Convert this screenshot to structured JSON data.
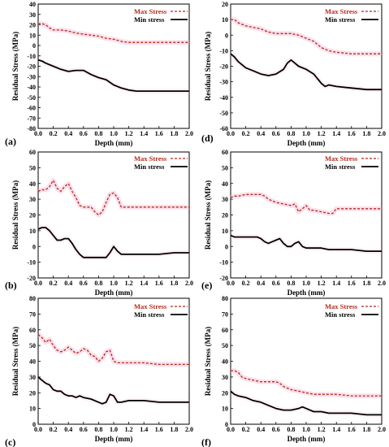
{
  "colors": {
    "max": "#b5291d",
    "min": "#000000",
    "band": "#f4a6c8"
  },
  "chart_data": [
    {
      "panel": "(a)",
      "type": "line",
      "xlabel": "Depth (mm)",
      "ylabel": "Residual Stress (MPa)",
      "xlim": [
        0,
        2.0
      ],
      "ylim": [
        -80,
        40
      ],
      "xticks": [
        "0.0",
        "0.2",
        "0.4",
        "0.6",
        "0.8",
        "1.0",
        "1.2",
        "1.4",
        "1.6",
        "1.8",
        "2.0"
      ],
      "yticks": [
        "-80",
        "-70",
        "-60",
        "-50",
        "-40",
        "-30",
        "-20",
        "-10",
        "0",
        "10",
        "20",
        "30",
        "40"
      ],
      "legend": {
        "position": "top-right",
        "max_label": "Max Stress",
        "min_label": "Min stress"
      },
      "series": [
        {
          "name": "Max Stress",
          "style": "dashed",
          "x": [
            0,
            0.05,
            0.1,
            0.15,
            0.2,
            0.3,
            0.4,
            0.5,
            0.6,
            0.7,
            0.8,
            0.9,
            1.0,
            1.1,
            1.2,
            1.4,
            1.6,
            1.8,
            2.0
          ],
          "y": [
            21,
            21,
            20,
            17,
            15,
            15,
            14,
            12,
            11,
            10,
            9,
            7,
            6,
            4,
            3,
            3,
            3,
            3,
            3
          ]
        },
        {
          "name": "Min stress",
          "style": "solid",
          "x": [
            0,
            0.05,
            0.1,
            0.2,
            0.3,
            0.4,
            0.5,
            0.6,
            0.7,
            0.8,
            0.9,
            1.0,
            1.1,
            1.2,
            1.3,
            1.4,
            1.6,
            1.8,
            2.0
          ],
          "y": [
            -14,
            -15,
            -17,
            -20,
            -23,
            -25,
            -24,
            -24,
            -28,
            -31,
            -33,
            -38,
            -41,
            -43,
            -44,
            -44,
            -44,
            -44,
            -44
          ]
        }
      ]
    },
    {
      "panel": "(d)",
      "type": "line",
      "xlabel": "Depth (mm)",
      "ylabel": "Residual Stress (MPa)",
      "xlim": [
        0,
        2.0
      ],
      "ylim": [
        -60,
        20
      ],
      "xticks": [
        "0.0",
        "0.2",
        "0.4",
        "0.6",
        "0.8",
        "1.0",
        "1.2",
        "1.4",
        "1.6",
        "1.8",
        "2.0"
      ],
      "yticks": [
        "-60",
        "-50",
        "-40",
        "-30",
        "-20",
        "-10",
        "0",
        "10",
        "20"
      ],
      "legend": {
        "position": "top-right",
        "max_label": "Max Stress",
        "min_label": "Min stress"
      },
      "series": [
        {
          "name": "Max Stress",
          "style": "dashed",
          "x": [
            0,
            0.05,
            0.1,
            0.2,
            0.3,
            0.4,
            0.5,
            0.6,
            0.7,
            0.8,
            0.9,
            1.0,
            1.1,
            1.2,
            1.3,
            1.4,
            1.6,
            1.8,
            2.0
          ],
          "y": [
            10,
            10,
            8,
            6,
            5,
            4,
            2,
            1,
            1,
            1,
            0,
            -2,
            -4,
            -8,
            -10,
            -11,
            -12,
            -12,
            -12
          ]
        },
        {
          "name": "Min stress",
          "style": "solid",
          "x": [
            0,
            0.05,
            0.1,
            0.2,
            0.3,
            0.4,
            0.5,
            0.6,
            0.7,
            0.75,
            0.8,
            0.85,
            0.9,
            1.0,
            1.1,
            1.2,
            1.25,
            1.3,
            1.4,
            1.6,
            1.8,
            2.0
          ],
          "y": [
            -12,
            -14,
            -17,
            -21,
            -23,
            -25,
            -26,
            -25,
            -22,
            -18,
            -16,
            -18,
            -20,
            -22,
            -25,
            -31,
            -33,
            -32,
            -33,
            -34,
            -35,
            -35
          ]
        }
      ]
    },
    {
      "panel": "(b)",
      "type": "line",
      "xlabel": "Depth (mm)",
      "ylabel": "Residual Stress (MPa)",
      "xlim": [
        0,
        2.0
      ],
      "ylim": [
        -20,
        60
      ],
      "xticks": [
        "0.0",
        "0.2",
        "0.4",
        "0.6",
        "0.8",
        "1.0",
        "1.2",
        "1.4",
        "1.6",
        "1.8",
        "2.0"
      ],
      "yticks": [
        "-20",
        "-10",
        "0",
        "10",
        "20",
        "30",
        "40",
        "50",
        "60"
      ],
      "legend": {
        "position": "top-right",
        "max_label": "Max Stress",
        "min_label": "Min stress"
      },
      "series": [
        {
          "name": "Max Stress",
          "style": "dashed",
          "x": [
            0,
            0.05,
            0.1,
            0.15,
            0.2,
            0.25,
            0.3,
            0.35,
            0.4,
            0.45,
            0.5,
            0.55,
            0.6,
            0.7,
            0.75,
            0.8,
            0.85,
            0.9,
            0.95,
            1.0,
            1.05,
            1.1,
            1.2,
            1.4,
            1.6,
            1.8,
            2.0
          ],
          "y": [
            35,
            36,
            36,
            38,
            42,
            37,
            35,
            38,
            40,
            35,
            31,
            26,
            25,
            25,
            22,
            20,
            22,
            28,
            33,
            34,
            31,
            25,
            25,
            25,
            25,
            25,
            25
          ]
        },
        {
          "name": "Min stress",
          "style": "solid",
          "x": [
            0,
            0.05,
            0.1,
            0.15,
            0.2,
            0.25,
            0.3,
            0.35,
            0.4,
            0.45,
            0.5,
            0.55,
            0.6,
            0.7,
            0.8,
            0.9,
            0.95,
            1.0,
            1.05,
            1.1,
            1.2,
            1.4,
            1.6,
            1.8,
            2.0
          ],
          "y": [
            11,
            12,
            12,
            10,
            7,
            4,
            4,
            5,
            5,
            2,
            -2,
            -5,
            -7,
            -7,
            -7,
            -7,
            -4,
            0,
            -3,
            -5,
            -5,
            -5,
            -5,
            -4,
            -4
          ]
        }
      ]
    },
    {
      "panel": "(e)",
      "type": "line",
      "xlabel": "Depth (mm)",
      "ylabel": "Residual Stress (MPa)",
      "xlim": [
        0,
        2.0
      ],
      "ylim": [
        -20,
        60
      ],
      "xticks": [
        "0.0",
        "0.2",
        "0.4",
        "0.6",
        "0.8",
        "1.0",
        "1.2",
        "1.4",
        "1.6",
        "1.8",
        "2.0"
      ],
      "yticks": [
        "-20",
        "-10",
        "0",
        "10",
        "20",
        "30",
        "40",
        "50",
        "60"
      ],
      "legend": {
        "position": "top-right",
        "max_label": "Max Stress",
        "min_label": "Min stress"
      },
      "series": [
        {
          "name": "Max Stress",
          "style": "dashed",
          "x": [
            0,
            0.05,
            0.1,
            0.2,
            0.3,
            0.4,
            0.45,
            0.5,
            0.55,
            0.6,
            0.7,
            0.8,
            0.85,
            0.9,
            0.95,
            1.0,
            1.05,
            1.1,
            1.2,
            1.3,
            1.35,
            1.4,
            1.6,
            1.8,
            2.0
          ],
          "y": [
            31,
            32,
            32,
            33,
            33,
            33,
            32,
            30,
            29,
            28,
            27,
            26,
            27,
            22,
            24,
            26,
            23,
            23,
            22,
            21,
            21,
            24,
            24,
            24,
            24
          ]
        },
        {
          "name": "Min stress",
          "style": "solid",
          "x": [
            0,
            0.05,
            0.1,
            0.2,
            0.3,
            0.35,
            0.4,
            0.45,
            0.5,
            0.55,
            0.6,
            0.65,
            0.7,
            0.75,
            0.8,
            0.85,
            0.9,
            0.95,
            1.0,
            1.1,
            1.2,
            1.3,
            1.4,
            1.6,
            1.8,
            2.0
          ],
          "y": [
            7,
            6,
            6,
            6,
            6,
            6,
            5,
            3,
            2,
            3,
            4,
            5,
            2,
            0,
            0,
            2,
            3,
            0,
            -1,
            -1,
            -1,
            -2,
            -2,
            -2,
            -3,
            -3
          ]
        }
      ]
    },
    {
      "panel": "(c)",
      "type": "line",
      "xlabel": "Depth (mm)",
      "ylabel": "Residual Stress (MPa)",
      "xlim": [
        0,
        2.0
      ],
      "ylim": [
        0,
        80
      ],
      "xticks": [
        "0.0",
        "0.2",
        "0.4",
        "0.6",
        "0.8",
        "1.0",
        "1.2",
        "1.4",
        "1.6",
        "1.8",
        "2.0"
      ],
      "yticks": [
        "0",
        "10",
        "20",
        "30",
        "40",
        "50",
        "60",
        "70",
        "80"
      ],
      "legend": {
        "position": "top-right",
        "max_label": "Max Stress",
        "min_label": "Min stress"
      },
      "series": [
        {
          "name": "Max Stress",
          "style": "dashed",
          "x": [
            0,
            0.05,
            0.1,
            0.15,
            0.2,
            0.25,
            0.3,
            0.35,
            0.4,
            0.45,
            0.5,
            0.55,
            0.6,
            0.65,
            0.7,
            0.75,
            0.8,
            0.85,
            0.9,
            0.95,
            1.0,
            1.05,
            1.1,
            1.2,
            1.4,
            1.6,
            1.8,
            2.0
          ],
          "y": [
            57,
            55,
            52,
            54,
            50,
            47,
            46,
            47,
            49,
            47,
            45,
            46,
            48,
            47,
            44,
            43,
            40,
            42,
            46,
            47,
            40,
            39,
            39,
            39,
            39,
            38,
            38,
            38
          ]
        },
        {
          "name": "Min stress",
          "style": "solid",
          "x": [
            0,
            0.05,
            0.1,
            0.15,
            0.2,
            0.25,
            0.3,
            0.35,
            0.4,
            0.45,
            0.5,
            0.55,
            0.6,
            0.7,
            0.8,
            0.85,
            0.9,
            0.95,
            1.0,
            1.05,
            1.1,
            1.2,
            1.4,
            1.6,
            1.8,
            2.0
          ],
          "y": [
            30,
            28,
            26,
            25,
            22,
            21,
            21,
            19,
            18,
            18,
            17,
            18,
            17,
            16,
            14,
            13,
            14,
            19,
            18,
            14,
            14,
            15,
            15,
            14,
            14,
            14
          ]
        }
      ]
    },
    {
      "panel": "(f)",
      "type": "line",
      "xlabel": "Depth (mm)",
      "ylabel": "Residual Stress (MPa)",
      "xlim": [
        0,
        2.0
      ],
      "ylim": [
        0,
        80
      ],
      "xticks": [
        "0.0",
        "0.2",
        "0.4",
        "0.6",
        "0.8",
        "1.0",
        "1.2",
        "1.4",
        "1.6",
        "1.8",
        "2.0"
      ],
      "yticks": [
        "0",
        "10",
        "20",
        "30",
        "40",
        "50",
        "60",
        "70",
        "80"
      ],
      "legend": {
        "position": "top-right",
        "max_label": "Max Stress",
        "min_label": "Min stress"
      },
      "series": [
        {
          "name": "Max Stress",
          "style": "dashed",
          "x": [
            0,
            0.05,
            0.1,
            0.15,
            0.2,
            0.3,
            0.4,
            0.5,
            0.6,
            0.65,
            0.7,
            0.8,
            0.9,
            1.0,
            1.1,
            1.2,
            1.4,
            1.6,
            1.8,
            2.0
          ],
          "y": [
            34,
            34,
            33,
            30,
            29,
            28,
            27,
            27,
            27,
            26,
            24,
            22,
            21,
            20,
            19,
            19,
            19,
            18,
            18,
            18
          ]
        },
        {
          "name": "Min stress",
          "style": "solid",
          "x": [
            0,
            0.05,
            0.1,
            0.2,
            0.3,
            0.4,
            0.5,
            0.6,
            0.7,
            0.8,
            0.9,
            0.95,
            1.0,
            1.05,
            1.1,
            1.2,
            1.3,
            1.4,
            1.6,
            1.8,
            2.0
          ],
          "y": [
            21,
            19,
            18,
            17,
            15,
            14,
            12,
            10,
            9,
            9,
            10,
            11,
            10,
            9,
            8,
            8,
            7,
            7,
            7,
            6,
            6
          ]
        }
      ]
    }
  ]
}
